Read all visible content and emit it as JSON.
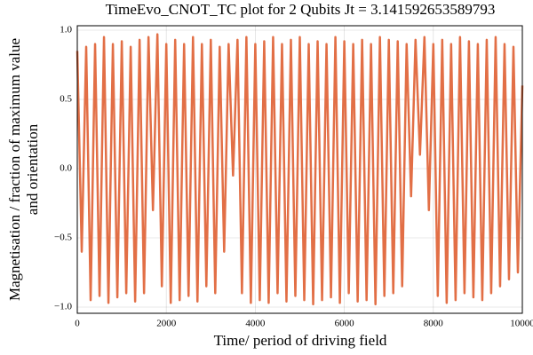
{
  "chart_data": {
    "type": "line",
    "title": "TimeEvo_CNOT_TC plot for 2 Qubits Jt = 3.141592653589793",
    "xlabel": "Time/ period of driving field",
    "ylabel": [
      "Magnetisation / fraction of maximum value",
      "and orientation"
    ],
    "x": [
      0,
      100,
      200,
      300,
      400,
      500,
      600,
      700,
      800,
      900,
      1000,
      1100,
      1200,
      1300,
      1400,
      1500,
      1600,
      1700,
      1800,
      1900,
      2000,
      2100,
      2200,
      2300,
      2400,
      2500,
      2600,
      2700,
      2800,
      2900,
      3000,
      3100,
      3200,
      3300,
      3400,
      3500,
      3600,
      3700,
      3800,
      3900,
      4000,
      4100,
      4200,
      4300,
      4400,
      4500,
      4600,
      4700,
      4800,
      4900,
      5000,
      5100,
      5200,
      5300,
      5400,
      5500,
      5600,
      5700,
      5800,
      5900,
      6000,
      6100,
      6200,
      6300,
      6400,
      6500,
      6600,
      6700,
      6800,
      6900,
      7000,
      7100,
      7200,
      7300,
      7400,
      7500,
      7600,
      7700,
      7800,
      7900,
      8000,
      8100,
      8200,
      8300,
      8400,
      8500,
      8600,
      8700,
      8800,
      8900,
      9000,
      9100,
      9200,
      9300,
      9400,
      9500,
      9600,
      9700,
      9800,
      9900,
      10000
    ],
    "series": [
      {
        "color": "#e26f46",
        "values": [
          0.85,
          -0.6,
          0.88,
          -0.95,
          0.9,
          -0.92,
          0.95,
          -0.97,
          0.9,
          -0.93,
          0.92,
          -0.9,
          0.88,
          -0.96,
          0.93,
          -0.9,
          0.95,
          -0.3,
          0.97,
          -0.85,
          0.9,
          -0.97,
          0.93,
          -0.95,
          0.9,
          -0.92,
          0.95,
          -0.96,
          0.9,
          -0.85,
          0.93,
          -0.9,
          0.88,
          -0.6,
          0.9,
          -0.05,
          0.93,
          -0.9,
          0.95,
          -0.97,
          0.9,
          -0.95,
          0.92,
          -0.97,
          0.95,
          -0.9,
          0.9,
          -0.96,
          0.93,
          -0.92,
          0.95,
          -0.95,
          0.9,
          -0.98,
          0.92,
          -0.95,
          0.9,
          -0.93,
          0.95,
          -0.97,
          0.92,
          -0.9,
          0.9,
          -0.96,
          0.93,
          -0.95,
          0.9,
          -0.98,
          0.95,
          -0.92,
          0.93,
          -0.9,
          0.92,
          -0.85,
          0.9,
          -0.2,
          0.93,
          0.1,
          0.95,
          -0.3,
          0.9,
          -0.92,
          0.93,
          -0.97,
          0.9,
          -0.95,
          0.95,
          -0.9,
          0.92,
          -0.93,
          0.9,
          -0.95,
          0.93,
          -0.9,
          0.95,
          -0.85,
          0.9,
          -0.8,
          0.88,
          -0.75,
          0.6
        ]
      }
    ],
    "xlim": [
      0,
      10000
    ],
    "xticks": [
      0,
      2000,
      4000,
      6000,
      8000,
      10000
    ],
    "ylim": [
      -1.045,
      1.032
    ],
    "yticks": [
      {
        "value": -1,
        "label": "−1.0"
      },
      {
        "value": -0.5,
        "label": "−0.5"
      },
      {
        "value": 0,
        "label": "0.0"
      },
      {
        "value": 0.5,
        "label": "0.5"
      },
      {
        "value": 1,
        "label": "1.0"
      }
    ],
    "grid": true
  }
}
